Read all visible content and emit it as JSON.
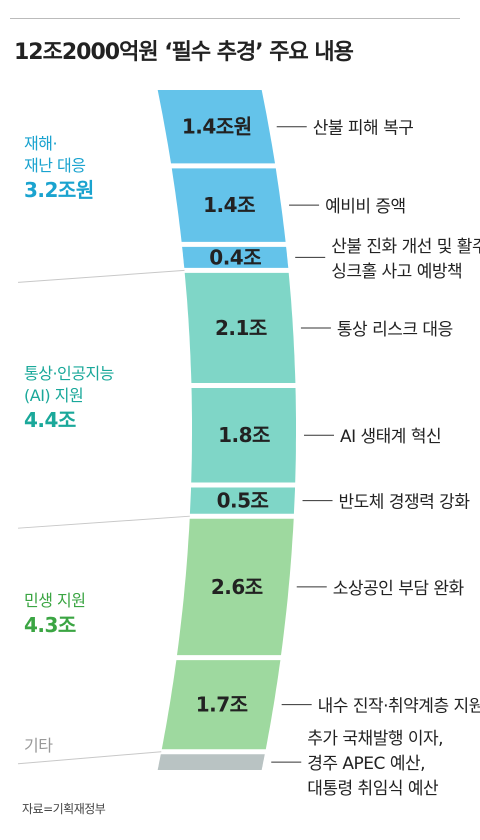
{
  "title": "12조2000억원 ‘필수 추경’ 주요 내용",
  "source": "자료=기획재정부",
  "colors": {
    "disaster": "#64c3ea",
    "trade": "#7fd6c7",
    "livelihood": "#9ed99f",
    "other": "#b9c3c3",
    "disaster_text": "#1aa3cf",
    "trade_text": "#1aa89a",
    "livelihood_text": "#3ba543",
    "other_text": "#999999"
  },
  "groups": [
    {
      "key": "disaster",
      "name_lines": [
        "재해·",
        "재난 대응"
      ],
      "total": "3.2조원"
    },
    {
      "key": "trade",
      "name_lines": [
        "통상·인공지능",
        "(AI) 지원"
      ],
      "total": "4.4조"
    },
    {
      "key": "livelihood",
      "name_lines": [
        "민생 지원"
      ],
      "total": "4.3조"
    },
    {
      "key": "other",
      "name_lines": [
        "기타"
      ],
      "total": ""
    }
  ],
  "chart_data": {
    "type": "bar",
    "unit": "조원",
    "title": "12조2000억원 ‘필수 추경’ 주요 내용",
    "segments": [
      {
        "group": "disaster",
        "value": 1.4,
        "label": "1.4조원",
        "desc": [
          "산불 피해 복구"
        ]
      },
      {
        "group": "disaster",
        "value": 1.4,
        "label": "1.4조",
        "desc": [
          "예비비 증액"
        ]
      },
      {
        "group": "disaster",
        "value": 0.4,
        "label": "0.4조",
        "desc": [
          "산불 진화 개선 및 활주로·",
          "싱크홀 사고 예방책"
        ]
      },
      {
        "group": "trade",
        "value": 2.1,
        "label": "2.1조",
        "desc": [
          "통상 리스크 대응"
        ]
      },
      {
        "group": "trade",
        "value": 1.8,
        "label": "1.8조",
        "desc": [
          "AI 생태계 혁신"
        ]
      },
      {
        "group": "trade",
        "value": 0.5,
        "label": "0.5조",
        "desc": [
          "반도체 경쟁력 강화"
        ]
      },
      {
        "group": "livelihood",
        "value": 2.6,
        "label": "2.6조",
        "desc": [
          "소상공인 부담 완화"
        ]
      },
      {
        "group": "livelihood",
        "value": 1.7,
        "label": "1.7조",
        "desc": [
          "내수 진작·취약계층 지원"
        ]
      },
      {
        "group": "other",
        "value": 0.3,
        "label": "",
        "desc": [
          "추가 국채발행 이자,",
          "경주 APEC 예산,",
          "대통령 취임식 예산"
        ]
      }
    ]
  }
}
